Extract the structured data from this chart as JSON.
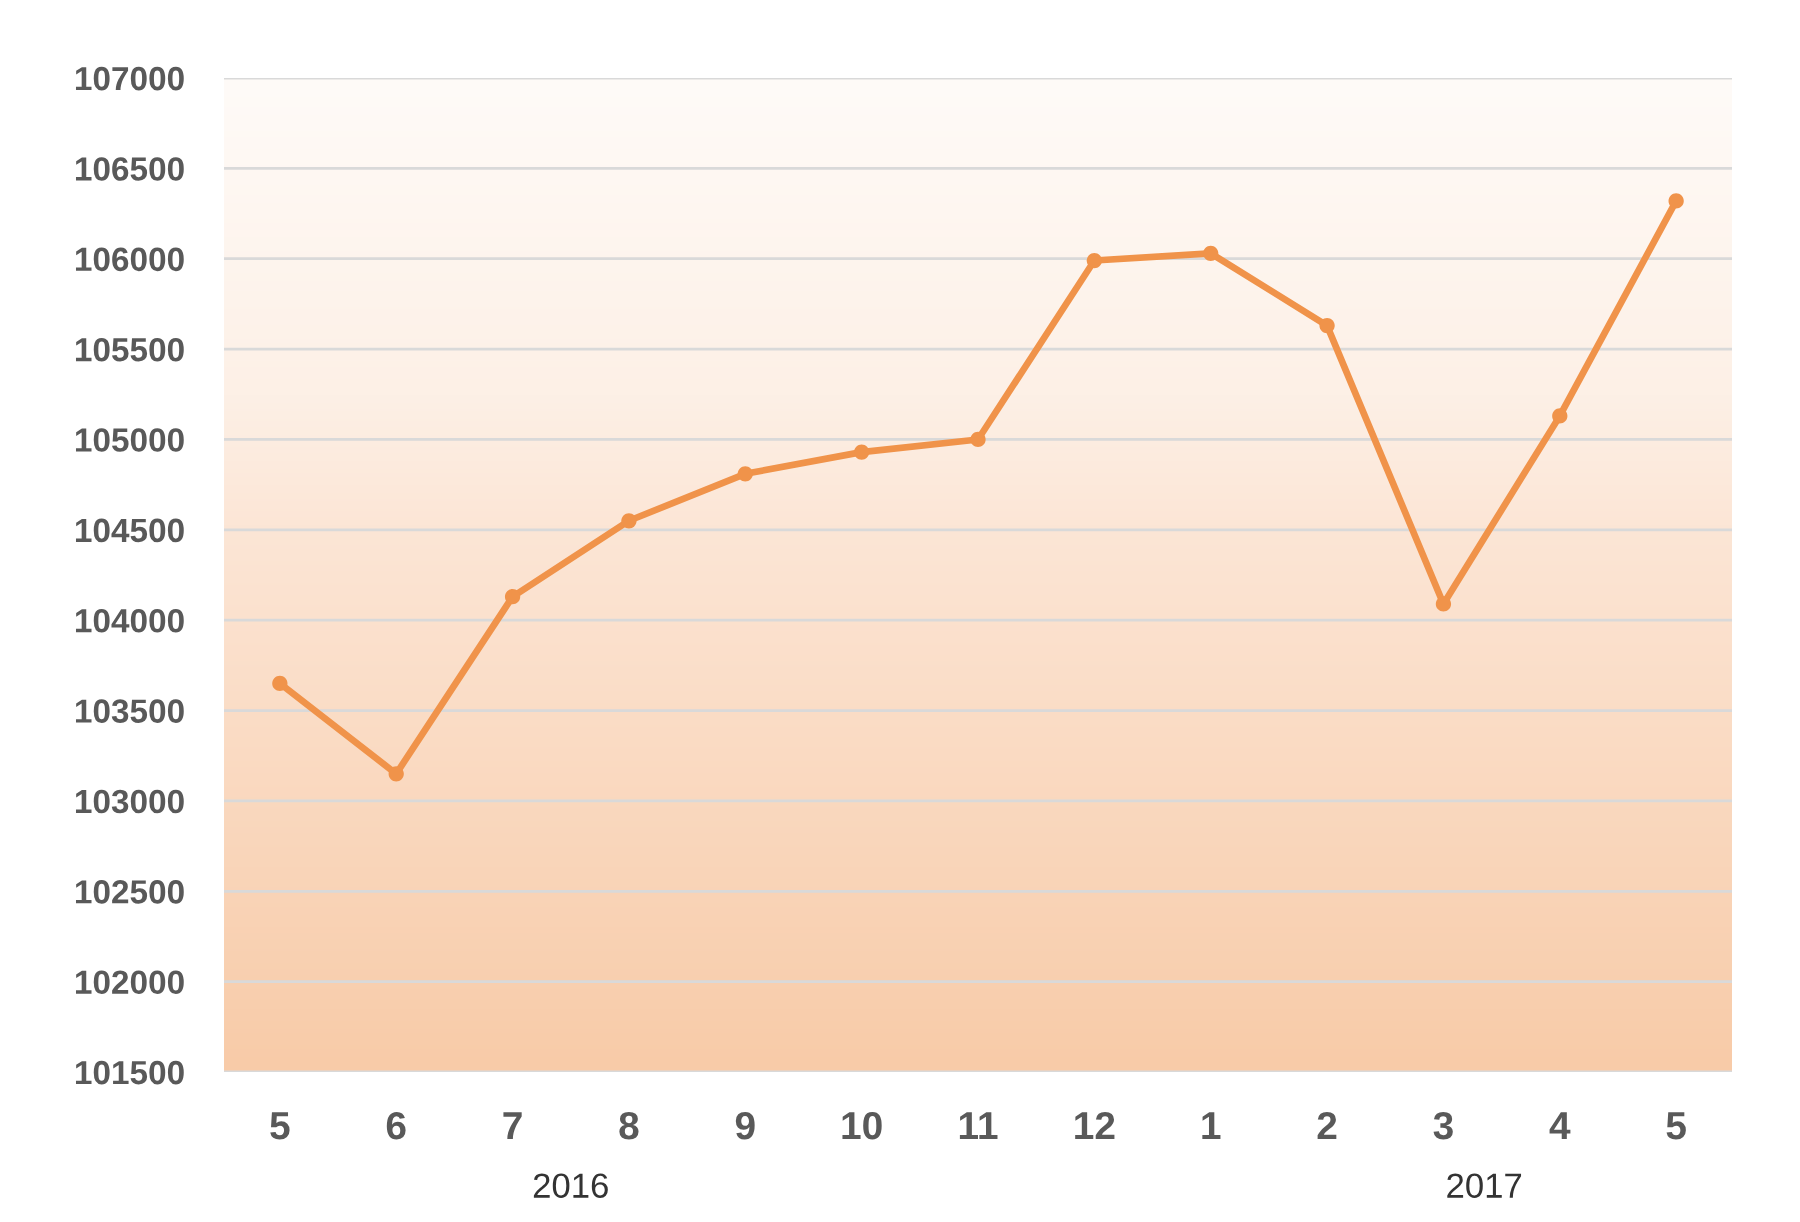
{
  "chart_data": {
    "type": "line",
    "categories": [
      "5",
      "6",
      "7",
      "8",
      "9",
      "10",
      "11",
      "12",
      "1",
      "2",
      "3",
      "4",
      "5"
    ],
    "series": [
      {
        "color": "#f0934a",
        "values": [
          103650,
          103150,
          104130,
          104550,
          104810,
          104930,
          105000,
          105990,
          106030,
          105630,
          104090,
          105130,
          106320
        ]
      }
    ],
    "ylim": [
      101500,
      107000
    ],
    "yticks": [
      101500,
      102000,
      102500,
      103000,
      103500,
      104000,
      104500,
      105000,
      105500,
      106000,
      106500,
      107000
    ],
    "grid": "y",
    "marker": "circle",
    "line_style": "solid",
    "annotations": [
      "2016",
      "2017"
    ]
  }
}
